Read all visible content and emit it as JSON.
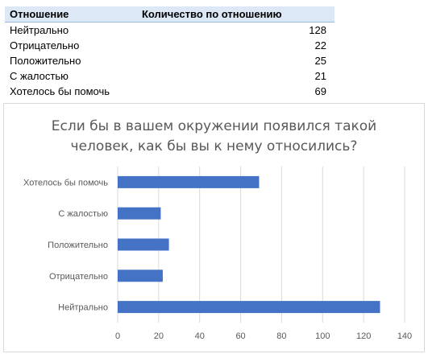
{
  "table": {
    "headers": [
      "Отношение",
      "Количество по отношению"
    ],
    "rows": [
      {
        "label": "Нейтрально",
        "value": "128"
      },
      {
        "label": "Отрицательно",
        "value": "22"
      },
      {
        "label": "Положительно",
        "value": "25"
      },
      {
        "label": "С жалостью",
        "value": "21"
      },
      {
        "label": "Хотелось бы помочь",
        "value": "69"
      }
    ]
  },
  "chart_data": {
    "type": "bar",
    "orientation": "horizontal",
    "title_line1": "Если бы в вашем окружении появился такой",
    "title_line2": "человек, как бы вы к нему относились?",
    "categories": [
      "Хотелось бы помочь",
      "С жалостью",
      "Положительно",
      "Отрицательно",
      "Нейтрально"
    ],
    "values": [
      69,
      21,
      25,
      22,
      128
    ],
    "xlim": [
      0,
      140
    ],
    "xticks": [
      "0",
      "20",
      "40",
      "60",
      "80",
      "100",
      "120",
      "140"
    ],
    "grid": true,
    "bar_color": "#4472c4"
  }
}
